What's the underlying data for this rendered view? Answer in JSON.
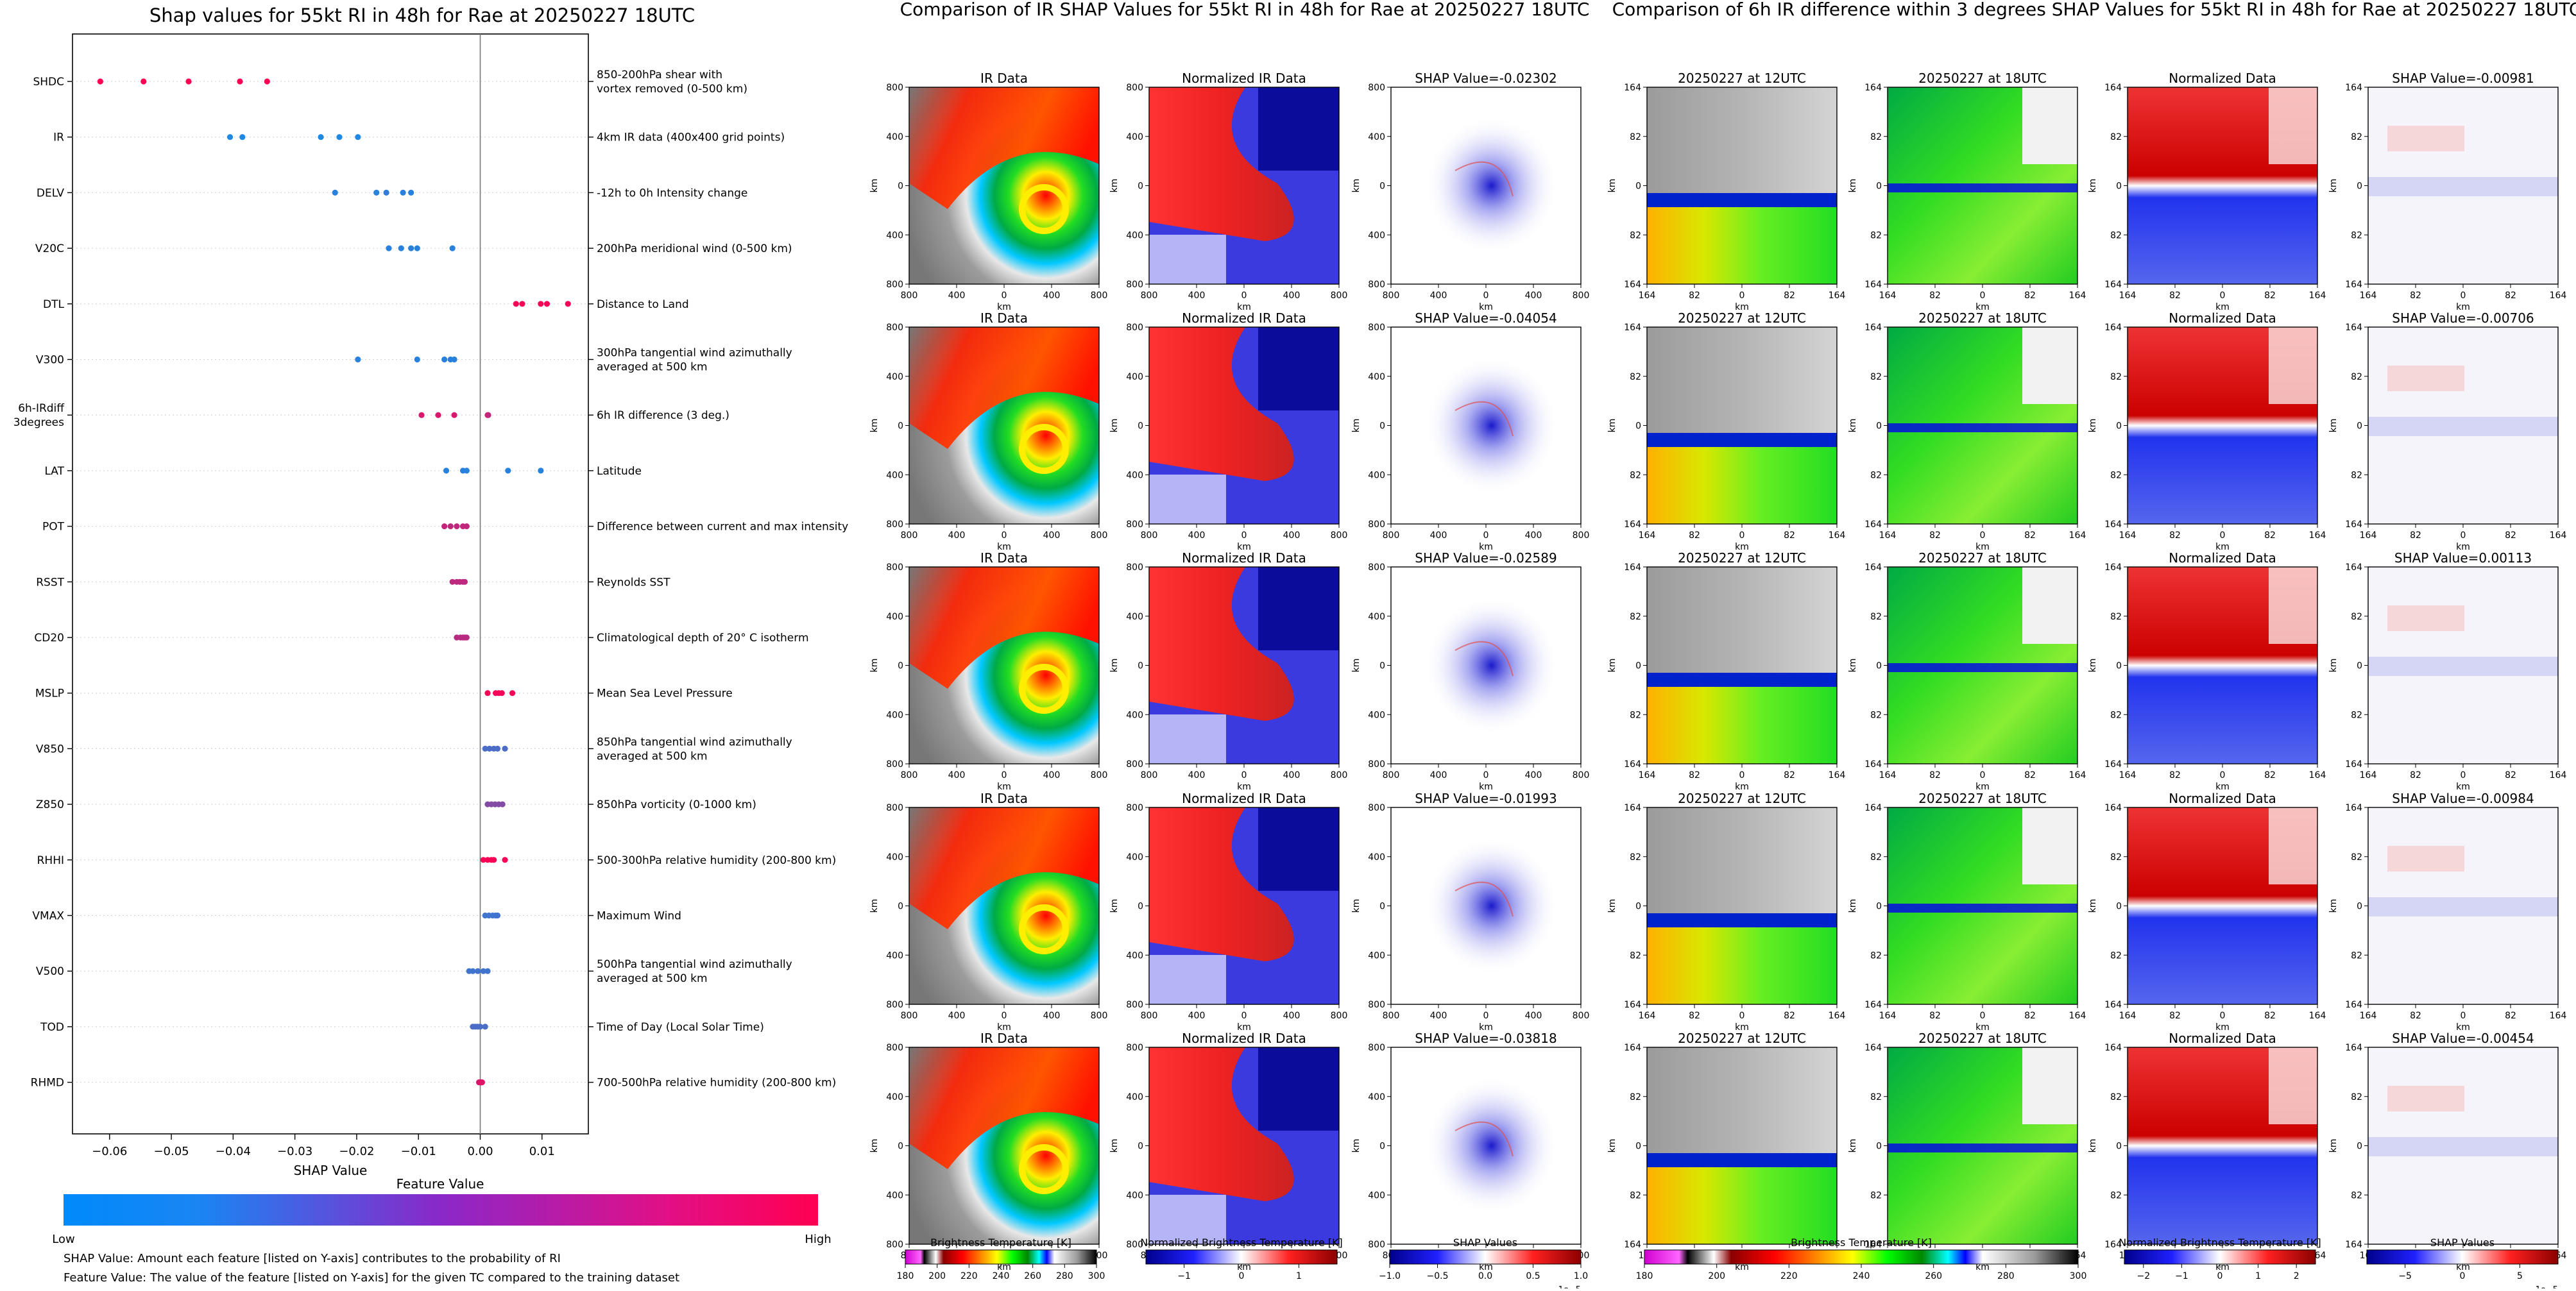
{
  "shap_panel": {
    "title": "Shap values for 55kt RI in 48h for Rae at 20250227 18UTC",
    "xlabel": "SHAP Value",
    "colorbar_title": "Feature Value",
    "colorbar_low": "Low",
    "colorbar_high": "High",
    "footnote_1": "SHAP Value: Amount each feature [listed on Y-axis] contributes to the probability of RI",
    "footnote_2": "Feature Value: The value of the feature [listed on Y-axis] for the given TC compared to the training dataset",
    "colors": {
      "low": "#1e88e5",
      "high": "#ff0052"
    }
  },
  "ir_panel": {
    "title": "Comparison of IR SHAP Values for 55kt RI in 48h for Rae at 20250227 18UTC",
    "col_titles": [
      "IR Data",
      "Normalized IR Data"
    ],
    "shap_titles": [
      "SHAP Value=-0.02302",
      "SHAP Value=-0.04054",
      "SHAP Value=-0.02589",
      "SHAP Value=-0.01993",
      "SHAP Value=-0.03818"
    ],
    "ticks": [
      "800",
      "400",
      "0",
      "400",
      "800"
    ],
    "axis_label": "km",
    "colorbars": [
      {
        "label": "Brightness Temperature [K]",
        "ticks": [
          "180",
          "200",
          "220",
          "240",
          "260",
          "280",
          "300"
        ],
        "exponent": ""
      },
      {
        "label": "Normalized Brightness Temperature [K]",
        "ticks": [
          "−1",
          "0",
          "1"
        ],
        "exponent": ""
      },
      {
        "label": "SHAP Values",
        "ticks": [
          "−1.0",
          "−0.5",
          "0.0",
          "0.5",
          "1.0"
        ],
        "exponent": "1e−5"
      }
    ]
  },
  "diff_panel": {
    "title": "Comparison of 6h IR difference within 3 degrees SHAP Values for 55kt RI in 48h for Rae at 20250227 18UTC",
    "col_titles": [
      "20250227 at 12UTC",
      "20250227 at 18UTC",
      "Normalized Data"
    ],
    "shap_titles": [
      "SHAP Value=-0.00981",
      "SHAP Value=-0.00706",
      "SHAP Value=0.00113",
      "SHAP Value=-0.00984",
      "SHAP Value=-0.00454"
    ],
    "ticks": [
      "164",
      "82",
      "0",
      "82",
      "164"
    ],
    "axis_label": "km",
    "colorbars": [
      {
        "label": "Brightness Temperature [K]",
        "ticks": [
          "180",
          "200",
          "220",
          "240",
          "260",
          "280",
          "300"
        ],
        "exponent": ""
      },
      {
        "label": "Normalized Brightness Temperature [K]",
        "ticks": [
          "−2",
          "−1",
          "0",
          "1",
          "2"
        ],
        "exponent": ""
      },
      {
        "label": "SHAP Values",
        "ticks": [
          "−5",
          "0",
          "5"
        ],
        "exponent": "1e−5"
      }
    ]
  },
  "chart_data": {
    "type": "scatter",
    "title": "Shap values for 55kt RI in 48h for Rae at 20250227 18UTC",
    "xlabel": "SHAP Value",
    "ylabel": "",
    "xlim": [
      -0.066,
      0.0175
    ],
    "xticks": [
      -0.06,
      -0.05,
      -0.04,
      -0.03,
      -0.02,
      -0.01,
      0.0,
      0.01
    ],
    "xtick_labels": [
      "−0.06",
      "−0.05",
      "−0.04",
      "−0.03",
      "−0.02",
      "−0.01",
      "0.00",
      "0.01"
    ],
    "colorbar": {
      "title": "Feature Value",
      "low": "Low",
      "high": "High"
    },
    "features": [
      {
        "name": "SHDC",
        "description": "850-200hPa shear with\nvortex removed (0-500 km)",
        "points": [
          [
            -0.0615,
            1
          ],
          [
            -0.0545,
            1
          ],
          [
            -0.0472,
            1
          ],
          [
            -0.0389,
            1
          ],
          [
            -0.0345,
            1
          ]
        ]
      },
      {
        "name": "IR",
        "description": "4km IR data (400x400 grid points)",
        "points": [
          [
            -0.0405,
            0
          ],
          [
            -0.0385,
            0
          ],
          [
            -0.0258,
            0
          ],
          [
            -0.0228,
            0
          ],
          [
            -0.0198,
            0
          ]
        ]
      },
      {
        "name": "DELV",
        "description": "-12h to 0h Intensity change",
        "points": [
          [
            -0.0235,
            0.05
          ],
          [
            -0.0168,
            0.05
          ],
          [
            -0.0152,
            0.08
          ],
          [
            -0.0125,
            0.05
          ],
          [
            -0.0112,
            0.05
          ]
        ]
      },
      {
        "name": "V20C",
        "description": "200hPa meridional wind (0-500 km)",
        "points": [
          [
            -0.0148,
            0.05
          ],
          [
            -0.0128,
            0.05
          ],
          [
            -0.0112,
            0.05
          ],
          [
            -0.0102,
            0.05
          ],
          [
            -0.0045,
            0.05
          ]
        ]
      },
      {
        "name": "DTL",
        "description": "Distance to Land",
        "points": [
          [
            0.0058,
            0.97
          ],
          [
            0.0068,
            0.97
          ],
          [
            0.0098,
            0.97
          ],
          [
            0.0108,
            0.97
          ],
          [
            0.0142,
            0.97
          ]
        ]
      },
      {
        "name": "V300",
        "description": "300hPa tangential wind azimuthally\naveraged at 500 km",
        "points": [
          [
            -0.0198,
            0.05
          ],
          [
            -0.0102,
            0.05
          ],
          [
            -0.0058,
            0.05
          ],
          [
            -0.0048,
            0.05
          ],
          [
            -0.0042,
            0.05
          ]
        ]
      },
      {
        "name": "6h-IRdiff\n3degrees",
        "description": "6h IR difference (3 deg.)",
        "points": [
          [
            -0.0095,
            0.82
          ],
          [
            -0.0068,
            0.82
          ],
          [
            -0.0042,
            0.82
          ],
          [
            0.0012,
            0.9
          ],
          [
            0.0013,
            0.7
          ]
        ]
      },
      {
        "name": "LAT",
        "description": "Latitude",
        "points": [
          [
            -0.0055,
            0.05
          ],
          [
            -0.0028,
            0.05
          ],
          [
            -0.0022,
            0.05
          ],
          [
            0.0045,
            0.05
          ],
          [
            0.0098,
            0.05
          ]
        ]
      },
      {
        "name": "POT",
        "description": "Difference between current and max intensity",
        "points": [
          [
            -0.0058,
            0.72
          ],
          [
            -0.0048,
            0.72
          ],
          [
            -0.0038,
            0.72
          ],
          [
            -0.0028,
            0.72
          ],
          [
            -0.0022,
            0.72
          ]
        ]
      },
      {
        "name": "RSST",
        "description": "Reynolds SST",
        "points": [
          [
            -0.0045,
            0.7
          ],
          [
            -0.0038,
            0.7
          ],
          [
            -0.0033,
            0.7
          ],
          [
            -0.0028,
            0.7
          ],
          [
            -0.0025,
            0.7
          ]
        ]
      },
      {
        "name": "CD20",
        "description": "Climatological depth of 20° C isotherm",
        "points": [
          [
            -0.0038,
            0.68
          ],
          [
            -0.0032,
            0.68
          ],
          [
            -0.0028,
            0.68
          ],
          [
            -0.0025,
            0.68
          ],
          [
            -0.0022,
            0.68
          ]
        ]
      },
      {
        "name": "MSLP",
        "description": "Mean Sea Level Pressure",
        "points": [
          [
            0.0012,
            0.95
          ],
          [
            0.0025,
            0.95
          ],
          [
            0.003,
            0.95
          ],
          [
            0.0035,
            0.95
          ],
          [
            0.0052,
            0.95
          ]
        ]
      },
      {
        "name": "V850",
        "description": "850hPa tangential wind azimuthally\naveraged at 500 km",
        "points": [
          [
            0.0008,
            0.2
          ],
          [
            0.0015,
            0.2
          ],
          [
            0.0022,
            0.2
          ],
          [
            0.0028,
            0.2
          ],
          [
            0.004,
            0.2
          ]
        ]
      },
      {
        "name": "Z850",
        "description": "850hPa vorticity (0-1000 km)",
        "points": [
          [
            0.0012,
            0.45
          ],
          [
            0.0018,
            0.45
          ],
          [
            0.0024,
            0.45
          ],
          [
            0.003,
            0.45
          ],
          [
            0.0036,
            0.45
          ]
        ]
      },
      {
        "name": "RHHI",
        "description": "500-300hPa relative humidity (200-800 km)",
        "points": [
          [
            0.0005,
            0.97
          ],
          [
            0.0012,
            0.97
          ],
          [
            0.0018,
            0.97
          ],
          [
            0.0022,
            0.97
          ],
          [
            0.004,
            0.97
          ]
        ]
      },
      {
        "name": "VMAX",
        "description": "Maximum Wind",
        "points": [
          [
            0.0008,
            0.15
          ],
          [
            0.0014,
            0.15
          ],
          [
            0.002,
            0.15
          ],
          [
            0.0025,
            0.15
          ],
          [
            0.0028,
            0.15
          ]
        ]
      },
      {
        "name": "V500",
        "description": "500hPa tangential wind azimuthally\naveraged at 500 km",
        "points": [
          [
            -0.0018,
            0.15
          ],
          [
            -0.0012,
            0.15
          ],
          [
            -0.0004,
            0.15
          ],
          [
            0.0005,
            0.15
          ],
          [
            0.0012,
            0.15
          ]
        ]
      },
      {
        "name": "TOD",
        "description": "Time of Day (Local Solar Time)",
        "points": [
          [
            -0.0012,
            0.2
          ],
          [
            -0.0008,
            0.2
          ],
          [
            -0.0004,
            0.2
          ],
          [
            0.0,
            0.2
          ],
          [
            0.0008,
            0.2
          ]
        ]
      },
      {
        "name": "RHMD",
        "description": "700-500hPa relative humidity (200-800 km)",
        "points": [
          [
            -0.0002,
            0.85
          ],
          [
            0.0,
            0.85
          ],
          [
            0.0001,
            0.85
          ],
          [
            0.0002,
            0.85
          ],
          [
            0.0003,
            0.85
          ]
        ]
      }
    ]
  }
}
